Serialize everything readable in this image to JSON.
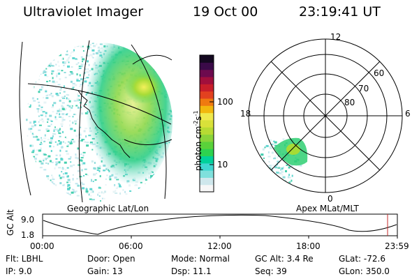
{
  "header": {
    "title": "Ultraviolet Imager",
    "date": "19 Oct 00",
    "time": "23:19:41 UT"
  },
  "colorbar": {
    "unit_label": "photon cm",
    "unit_sup1": "-2",
    "unit_mid": "s",
    "unit_sup2": "-1",
    "ticks": [
      "100",
      "10"
    ],
    "colors": [
      "#f7f7f7",
      "#cfe7ec",
      "#7fe0dc",
      "#3fd7d0",
      "#00d19a",
      "#2dd24f",
      "#5ad23a",
      "#8ad43a",
      "#b7db33",
      "#d9e13a",
      "#efe94d",
      "#f2b80e",
      "#ef7a10",
      "#e2411f",
      "#c81e2a",
      "#a10f3c",
      "#6d0a4e",
      "#3a0a48",
      "#140820"
    ]
  },
  "left_map": {
    "caption": "Geographic Lat/Lon"
  },
  "right_map": {
    "caption": "Apex MLat/MLT",
    "mlt_labels": {
      "top": "12",
      "left": "18",
      "right": "6",
      "bottom": "0"
    },
    "lat_labels": [
      "60",
      "70",
      "80"
    ]
  },
  "orbit": {
    "ylabel": "GC Alt",
    "yticks": [
      "9.0",
      "1.8"
    ],
    "xticks": [
      "00:00",
      "06:00",
      "12:00",
      "18:00",
      "23:59"
    ]
  },
  "info": {
    "flt": "Flt: LBHL",
    "ip": "IP: 9.0",
    "door": "Door: Open",
    "gain": "Gain: 13",
    "mode": "Mode: Normal",
    "dsp": "Dsp: 11.1",
    "gcalt": "GC Alt: 3.4 Re",
    "seq": "Seq: 39",
    "glat": "GLat: -72.6",
    "glon": "GLon: 350.0"
  },
  "accent": {
    "marker": "#c62828"
  }
}
